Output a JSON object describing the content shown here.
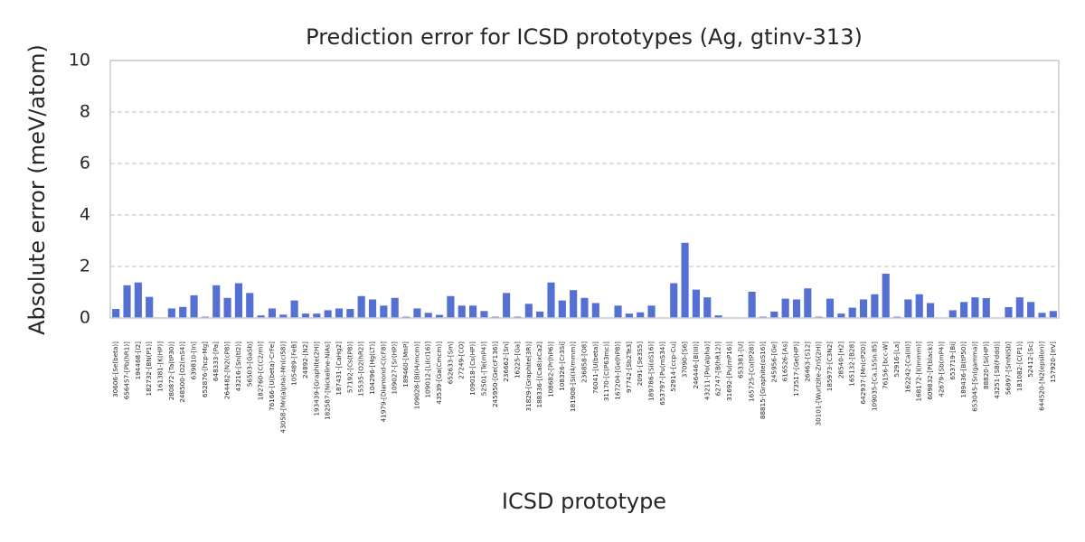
{
  "chart_data": {
    "type": "bar",
    "title": "Prediction error for ICSD prototypes (Ag, gtinv-313)",
    "x_label": "ICSD prototype",
    "y_label": "Absolute error (meV/atom)",
    "color": "#5470d3",
    "grid": true,
    "ylim": [
      0,
      10
    ],
    "yticks": [
      0,
      2,
      4,
      6,
      8,
      10
    ],
    "categories": [
      "30606-[Se(beta)]",
      "656457-[Pb(hR1)]",
      "194468-[I2]",
      "182732-[BN(P1)]",
      "161381-[K(HP)]",
      "280872-[Ta(tP30)]",
      "248500-[O2(mS4)]",
      "639810-[In]",
      "652876-[hcp-Mg]",
      "648333-[Pa]",
      "264482-[N2(cP8)]",
      "43216-[Sn(tI2)]",
      "56503-[GaSb]",
      "182760-[C(C2/m)]",
      "76166-[U(beta)-CrFe]",
      "43058-[Mn(alpha)-Mn(cI58)]",
      "105489-[FeB]",
      "24892-[N2]",
      "193439-[Graphite(2H)]",
      "182587-[Nickeline-NiAs]",
      "187431-[CaHg2]",
      "57192-[Cs(tP8)]",
      "15535-[O2(hR2)]",
      "104296-[Hg(LT)]",
      "41979-[Diamond-C(cF8)]",
      "109027-[Sr(HP)]",
      "189460-[MnP]",
      "109028-[Bi(I4/mcm)]",
      "109012-[Li(cI16)]",
      "43539-[Ga(Cmcm)]",
      "652633-[Sm]",
      "27249-[CO]",
      "109018-[Cs(HP)]",
      "52501-[Te(mP4)]",
      "245950-[Ge(cF136)]",
      "236662-[Sn]",
      "16225-[Ga]",
      "31829-[Graphite(3R)]",
      "188336-[(Ca8)xCa2]",
      "108682-[Pr(hP6)]",
      "108326-[Cr3Si]",
      "181908-[Si(I4/mmm)]",
      "236858-[O8]",
      "76041-[U(beta)]",
      "31170-[C(P63mc)]",
      "167204-[Ge(hP8)]",
      "97742-[Sb2Te3]",
      "2091-[Se3S5]",
      "189786-[Si(oS16)]",
      "653797-[Pu(mS34)]",
      "52914-[ccp-Cu]",
      "37090-[S6]",
      "246446-[B(III)]",
      "43211-[Po(alpha)]",
      "62747-[B(hR12)]",
      "31692-[Pu(mP16)]",
      "653381-[U]",
      "165725-[Co(tP28)]",
      "88815-[Graphite(oS16)]",
      "245956-[Ge]",
      "616526-[As]",
      "173517-[Ge(HP)]",
      "26463-[S12]",
      "30101-[Wurtzite-ZnS(2H)]",
      "185973-[C3N2]",
      "28540-[H2]",
      "165132-[B28]",
      "642937-[Mn(cP20)]",
      "109035-[Ca.15Sn.85]",
      "76156-[bcc-W]",
      "52916-[La]",
      "162242-[Ca(III)]",
      "168172-[I(Immm)]",
      "609832-[P(black)]",
      "42679-[Sb(mP4)]",
      "653719-[Bi]",
      "189436-[B(tP50)]",
      "653045-[Sn(gamma)]",
      "88820-[Si(HP)]",
      "43251-[S8(Fddd)]",
      "56897-[SmNiSb]",
      "181082-[C(P1)]",
      "52412-[Sc]",
      "644520-[N2(epsilon)]",
      "157920-[IrV]"
    ],
    "values": [
      0.35,
      1.27,
      1.38,
      0.82,
      0.02,
      0.37,
      0.43,
      0.88,
      0.05,
      1.27,
      0.78,
      1.35,
      0.97,
      0.1,
      0.37,
      0.13,
      0.68,
      0.17,
      0.17,
      0.3,
      0.37,
      0.35,
      0.85,
      0.72,
      0.48,
      0.78,
      0.05,
      0.37,
      0.2,
      0.12,
      0.85,
      0.48,
      0.48,
      0.27,
      0.05,
      0.97,
      0.05,
      0.55,
      0.25,
      1.38,
      0.68,
      1.08,
      0.78,
      0.58,
      0,
      0.48,
      0.17,
      0.22,
      0.48,
      0,
      1.35,
      2.92,
      1.1,
      0.8,
      0.1,
      0,
      0,
      1.02,
      0.05,
      0.25,
      0.75,
      0.72,
      1.15,
      0.05,
      0.75,
      0.17,
      0.4,
      0.72,
      0.92,
      1.72,
      0.05,
      0.72,
      0.92,
      0.58,
      0,
      0.3,
      0.62,
      0.8,
      0.77,
      0,
      0.42,
      0.8,
      0.62,
      0.2,
      0.27
    ]
  }
}
